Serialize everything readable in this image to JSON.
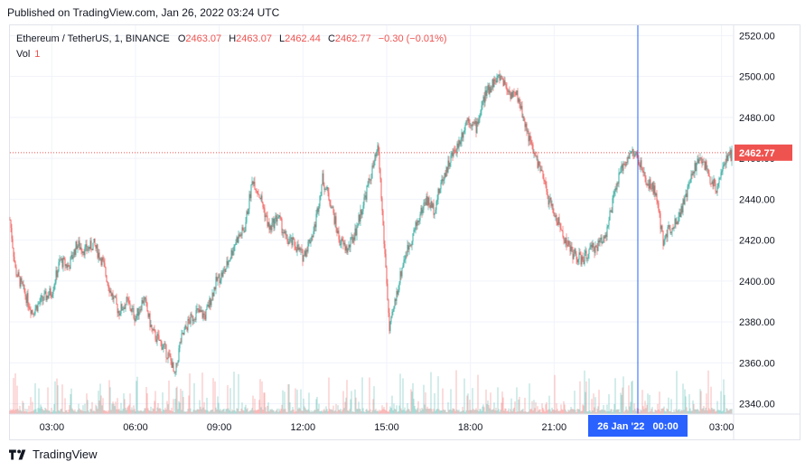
{
  "header": {
    "published": "Published on TradingView.com, Jan 26, 2022 03:24 UTC"
  },
  "legend": {
    "symbol": "Ethereum / TetherUS, 1, BINANCE",
    "o_label": "O",
    "o_value": "2463.07",
    "h_label": "H",
    "h_value": "2463.07",
    "l_label": "L",
    "l_value": "2462.44",
    "c_label": "C",
    "c_value": "2462.77",
    "change": "−0.30 (−0.01%)",
    "vol_label": "Vol",
    "vol_value": "1"
  },
  "footer": {
    "brand": "TradingView",
    "logo_icon": "tradingview-logo-icon"
  },
  "colors": {
    "up": "#26a69a",
    "down": "#ef5350",
    "crosshair": "#2962ff",
    "grid": "#f0f3fa",
    "price_line": "#ef5350"
  },
  "chart_data": {
    "type": "candlestick",
    "ylim": [
      2335,
      2525
    ],
    "y_ticks": [
      "2520.00",
      "2500.00",
      "2480.00",
      "2460.00",
      "2440.00",
      "2420.00",
      "2400.00",
      "2380.00",
      "2360.00",
      "2340.00"
    ],
    "x_ticks": [
      "03:00",
      "06:00",
      "09:00",
      "12:00",
      "15:00",
      "18:00",
      "21:00",
      "03:00"
    ],
    "x_tick_hours": [
      3,
      6,
      9,
      12,
      15,
      18,
      21,
      27
    ],
    "x_range_hours": [
      1.5,
      27.4
    ],
    "current_price": "2462.77",
    "crosshair": {
      "label": "26 Jan '22   00:00",
      "hour": 24
    },
    "price_path": [
      [
        1.5,
        2430
      ],
      [
        1.7,
        2405
      ],
      [
        2.0,
        2395
      ],
      [
        2.3,
        2385
      ],
      [
        2.6,
        2390
      ],
      [
        3.0,
        2395
      ],
      [
        3.3,
        2410
      ],
      [
        3.6,
        2407
      ],
      [
        3.9,
        2418
      ],
      [
        4.2,
        2415
      ],
      [
        4.5,
        2418
      ],
      [
        4.8,
        2410
      ],
      [
        5.1,
        2395
      ],
      [
        5.4,
        2385
      ],
      [
        5.7,
        2390
      ],
      [
        6.0,
        2382
      ],
      [
        6.3,
        2392
      ],
      [
        6.6,
        2375
      ],
      [
        7.0,
        2368
      ],
      [
        7.3,
        2360
      ],
      [
        7.4,
        2352
      ],
      [
        7.6,
        2370
      ],
      [
        7.9,
        2380
      ],
      [
        8.2,
        2385
      ],
      [
        8.5,
        2383
      ],
      [
        8.9,
        2400
      ],
      [
        9.2,
        2405
      ],
      [
        9.6,
        2420
      ],
      [
        9.9,
        2425
      ],
      [
        10.2,
        2450
      ],
      [
        10.5,
        2440
      ],
      [
        10.8,
        2425
      ],
      [
        11.1,
        2432
      ],
      [
        11.4,
        2420
      ],
      [
        11.7,
        2418
      ],
      [
        12.0,
        2412
      ],
      [
        12.4,
        2425
      ],
      [
        12.7,
        2450
      ],
      [
        13.0,
        2438
      ],
      [
        13.3,
        2420
      ],
      [
        13.6,
        2415
      ],
      [
        13.9,
        2425
      ],
      [
        14.2,
        2440
      ],
      [
        14.5,
        2455
      ],
      [
        14.7,
        2465
      ],
      [
        14.9,
        2420
      ],
      [
        15.0,
        2400
      ],
      [
        15.1,
        2375
      ],
      [
        15.3,
        2390
      ],
      [
        15.6,
        2410
      ],
      [
        16.0,
        2425
      ],
      [
        16.4,
        2440
      ],
      [
        16.7,
        2435
      ],
      [
        17.0,
        2450
      ],
      [
        17.3,
        2460
      ],
      [
        17.6,
        2468
      ],
      [
        17.9,
        2480
      ],
      [
        18.2,
        2475
      ],
      [
        18.5,
        2490
      ],
      [
        18.8,
        2497
      ],
      [
        19.1,
        2500
      ],
      [
        19.4,
        2492
      ],
      [
        19.7,
        2490
      ],
      [
        19.9,
        2480
      ],
      [
        20.2,
        2465
      ],
      [
        20.5,
        2455
      ],
      [
        20.8,
        2440
      ],
      [
        21.1,
        2430
      ],
      [
        21.4,
        2420
      ],
      [
        21.7,
        2413
      ],
      [
        22.0,
        2410
      ],
      [
        22.3,
        2415
      ],
      [
        22.6,
        2418
      ],
      [
        22.9,
        2425
      ],
      [
        23.2,
        2445
      ],
      [
        23.5,
        2458
      ],
      [
        23.8,
        2463
      ],
      [
        24.0,
        2460
      ],
      [
        24.3,
        2448
      ],
      [
        24.6,
        2445
      ],
      [
        24.9,
        2420
      ],
      [
        25.1,
        2425
      ],
      [
        25.4,
        2430
      ],
      [
        25.7,
        2440
      ],
      [
        26.0,
        2455
      ],
      [
        26.3,
        2460
      ],
      [
        26.6,
        2450
      ],
      [
        26.8,
        2445
      ],
      [
        27.0,
        2455
      ],
      [
        27.4,
        2463
      ]
    ]
  }
}
